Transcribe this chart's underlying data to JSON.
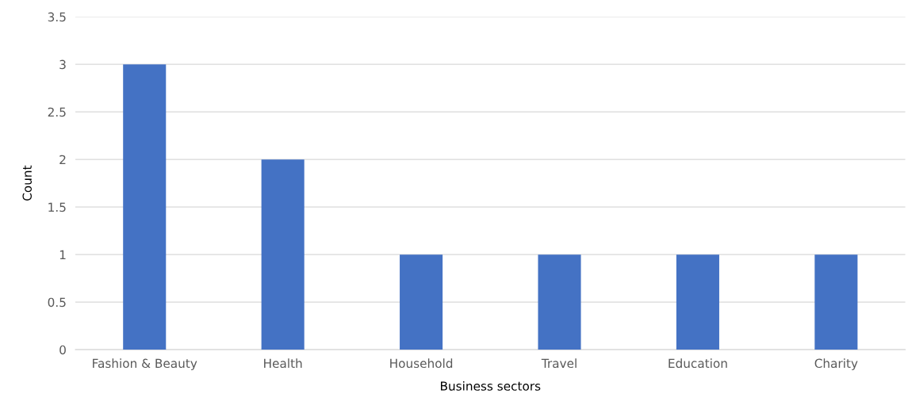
{
  "chart_data": {
    "type": "bar",
    "xlabel": "Business sectors",
    "ylabel": "Count",
    "categories": [
      "Fashion & Beauty",
      "Health",
      "Household",
      "Travel",
      "Education",
      "Charity"
    ],
    "values": [
      3,
      2,
      1,
      1,
      1,
      1
    ],
    "color": "#4472c4",
    "ylim": [
      0,
      3.5
    ],
    "yticks": [
      0,
      0.5,
      1,
      1.5,
      2,
      2.5,
      3,
      3.5
    ],
    "grid": "y",
    "legend": false
  }
}
